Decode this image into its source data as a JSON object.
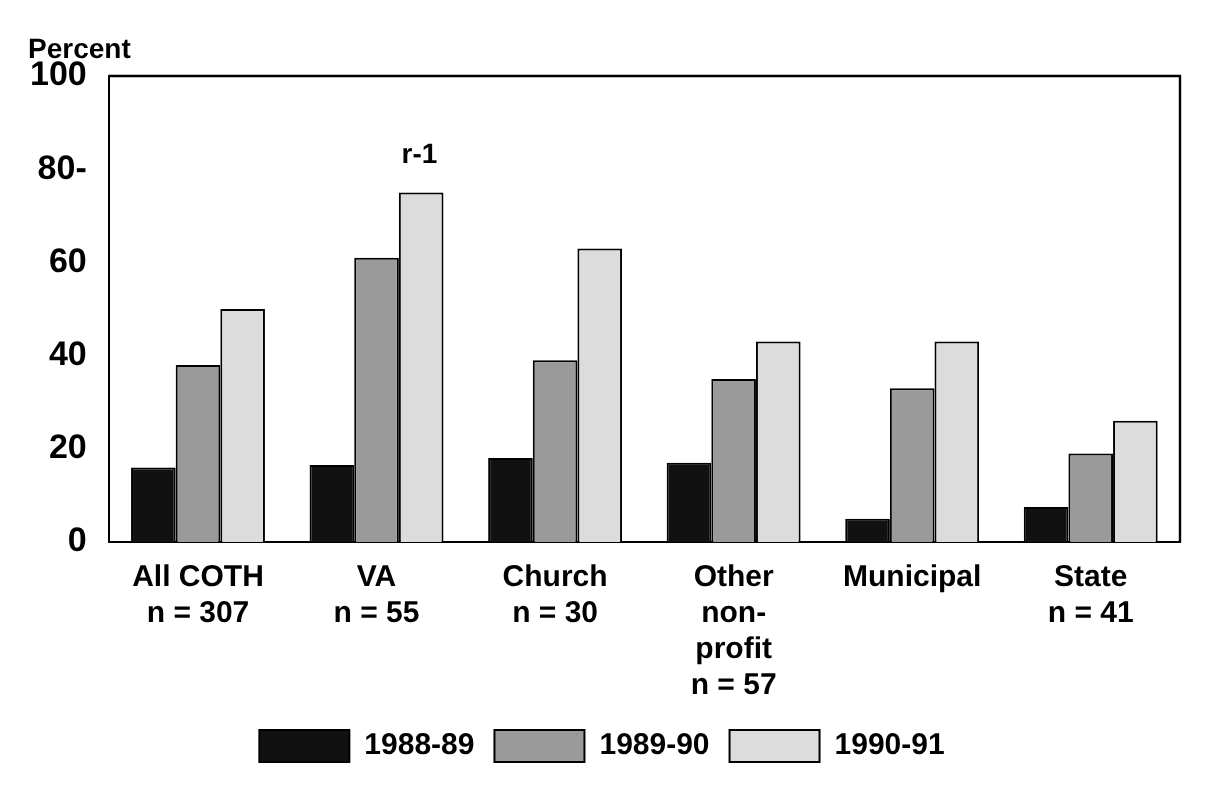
{
  "chart_data": {
    "type": "bar",
    "ylabel": "Percent",
    "categories": [
      "All COTH\nn = 307",
      "VA\nn = 55",
      "Church\nn = 30",
      "Other\nnon-\nprofit\nn = 57",
      "Municipal",
      "State\nn = 41"
    ],
    "series": [
      {
        "name": "1988-89",
        "color": "#111111",
        "values": [
          16,
          16.5,
          18,
          17,
          5,
          7.5
        ]
      },
      {
        "name": "1989-90",
        "color": "#9a9a9a",
        "values": [
          38,
          61,
          39,
          35,
          33,
          19
        ]
      },
      {
        "name": "1990-91",
        "color": "#dcdcdc",
        "values": [
          50,
          75,
          63,
          43,
          43,
          26
        ]
      }
    ],
    "ylim": [
      0,
      100
    ],
    "yticks": [
      0,
      20,
      40,
      60,
      {
        "value": 80,
        "label": "80-"
      },
      100
    ],
    "annotations": [
      "r-1"
    ],
    "legend": "bottom"
  }
}
